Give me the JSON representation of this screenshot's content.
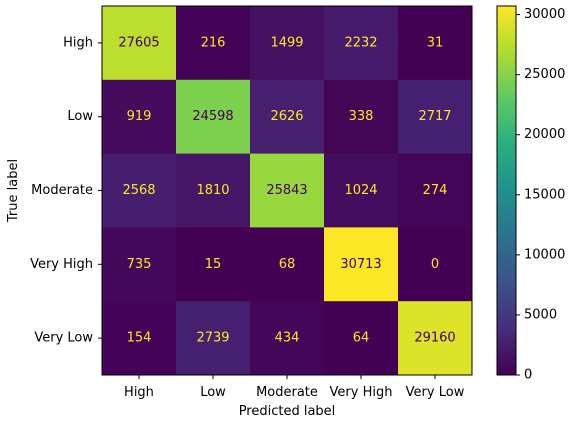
{
  "chart_data": {
    "type": "heatmap",
    "title": "",
    "xlabel": "Predicted label",
    "ylabel": "True label",
    "x_categories": [
      "High",
      "Low",
      "Moderate",
      "Very High",
      "Very Low"
    ],
    "y_categories": [
      "High",
      "Low",
      "Moderate",
      "Very High",
      "Very Low"
    ],
    "values": [
      [
        27605,
        216,
        1499,
        2232,
        31
      ],
      [
        919,
        24598,
        2626,
        338,
        2717
      ],
      [
        2568,
        1810,
        25843,
        1024,
        274
      ],
      [
        735,
        15,
        68,
        30713,
        0
      ],
      [
        154,
        2739,
        434,
        64,
        29160
      ]
    ],
    "colormap": "viridis",
    "colorbar": {
      "min": 0,
      "max": 30713,
      "ticks": [
        0,
        5000,
        10000,
        15000,
        20000,
        25000,
        30000
      ]
    },
    "text_colors": {
      "light": "#fde725",
      "dark": "#440154"
    },
    "grid": false
  }
}
